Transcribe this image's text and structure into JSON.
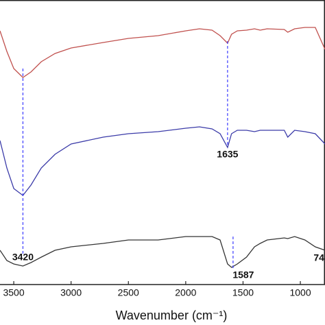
{
  "chart_data": {
    "type": "line",
    "x_label": "Wavenumber (cm⁻¹)",
    "x": [
      3620,
      3560,
      3500,
      3420,
      3350,
      3260,
      3140,
      3000,
      2720,
      2500,
      2240,
      2000,
      1880,
      1770,
      1700,
      1635,
      1600,
      1550,
      1470,
      1400,
      1350,
      1290,
      1140,
      1110,
      1050,
      960,
      870,
      785
    ],
    "series": [
      {
        "color": "#c0504d",
        "values": [
          370,
          340,
          315,
          302,
          310,
          325,
          337,
          345,
          353,
          359,
          363,
          370,
          373,
          371,
          363,
          352,
          365,
          370,
          371,
          373,
          371,
          373,
          372,
          368,
          373,
          375,
          375,
          343
        ]
      },
      {
        "color": "#3a3aa8",
        "values": [
          210,
          170,
          140,
          130,
          145,
          170,
          190,
          205,
          215,
          220,
          223,
          228,
          230,
          227,
          220,
          200,
          220,
          225,
          225,
          223,
          225,
          225,
          225,
          215,
          225,
          223,
          220,
          205
        ]
      },
      {
        "color": "#333333",
        "values": [
          50,
          35,
          30,
          27,
          32,
          40,
          50,
          55,
          60,
          65,
          65,
          70,
          70,
          70,
          65,
          30,
          25,
          30,
          40,
          55,
          60,
          65,
          68,
          67,
          70,
          65,
          55,
          50
        ]
      }
    ],
    "xlim": [
      3620,
      785
    ],
    "ylim": [
      0,
      415
    ],
    "xticks": [
      3500,
      3000,
      2500,
      2000,
      1500,
      1000
    ],
    "annotations": [
      {
        "text": "3420",
        "x": 3420
      },
      {
        "text": "1635",
        "x": 1635
      },
      {
        "text": "1587",
        "x": 1587
      },
      {
        "text": "74",
        "x": 790
      }
    ],
    "reference_line_color": "#3a3aff"
  }
}
